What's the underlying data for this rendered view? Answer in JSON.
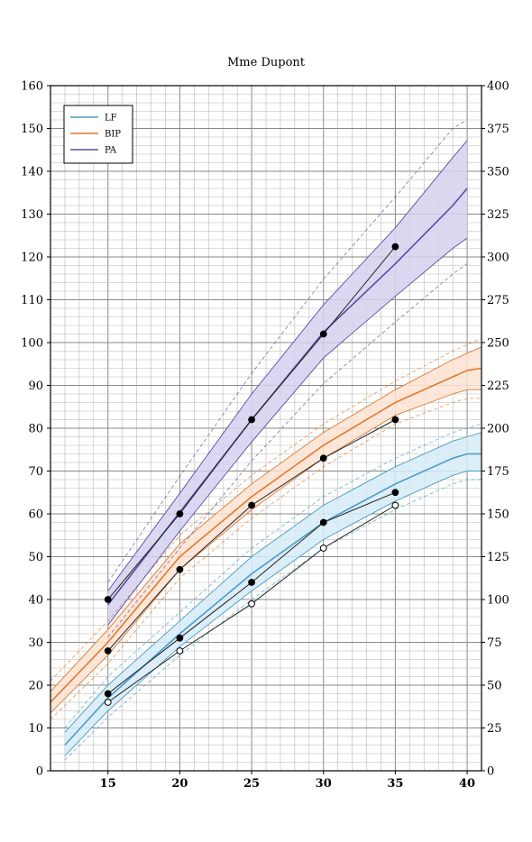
{
  "chart_data": {
    "type": "line",
    "title": "Mme Dupont",
    "x_range": [
      11,
      41
    ],
    "y_left_range": [
      0,
      160
    ],
    "y_right_range": [
      0,
      400
    ],
    "x_ticks": [
      15,
      20,
      25,
      30,
      35,
      40
    ],
    "y_left_ticks": [
      0,
      10,
      20,
      30,
      40,
      50,
      60,
      70,
      80,
      90,
      100,
      110,
      120,
      130,
      140,
      150,
      160
    ],
    "y_right_ticks": [
      0,
      25,
      50,
      75,
      100,
      125,
      150,
      175,
      200,
      225,
      250,
      275,
      300,
      325,
      350,
      375,
      400
    ],
    "grid": true,
    "legend_position": "top-left",
    "legend": [
      {
        "label": "LF",
        "color": "#4a9cc6"
      },
      {
        "label": "BIP",
        "color": "#e07a30"
      },
      {
        "label": "PA",
        "color": "#5a4e9e"
      }
    ],
    "reference_curves": [
      {
        "name": "LF",
        "axis": "left",
        "color": "#4a9cc6",
        "fill": "#d6ebf7",
        "x": [
          12,
          15,
          20,
          25,
          30,
          35,
          39,
          40,
          41
        ],
        "mean": [
          6,
          17,
          32,
          46,
          58,
          67,
          73,
          74,
          74
        ],
        "upper": [
          9,
          20,
          35,
          50,
          62,
          71,
          77,
          78,
          79
        ],
        "lower": [
          3.5,
          14,
          29,
          42,
          54,
          63,
          69,
          70,
          70
        ],
        "upper_extreme": [
          10,
          22,
          37,
          52,
          64,
          73,
          79,
          80,
          81
        ],
        "lower_extreme": [
          2.5,
          12.5,
          27,
          40,
          52,
          61,
          67,
          68,
          68
        ]
      },
      {
        "name": "BIP",
        "axis": "left",
        "color": "#e07a30",
        "fill": "#fbe3d2",
        "x": [
          11,
          15,
          20,
          25,
          30,
          35,
          39,
          40,
          41
        ],
        "mean": [
          16,
          30,
          50,
          64,
          76,
          86,
          92,
          93.5,
          94
        ],
        "upper": [
          18.5,
          33,
          53,
          67,
          79,
          89,
          96,
          97.5,
          99
        ],
        "lower": [
          13.5,
          27,
          47,
          61,
          73,
          83,
          88,
          89,
          89
        ],
        "upper_extreme": [
          21,
          35,
          55,
          69,
          81,
          91,
          98,
          99.5,
          101
        ],
        "lower_extreme": [
          12,
          25,
          45,
          59,
          71,
          81,
          86,
          87,
          87
        ]
      },
      {
        "name": "PA",
        "axis": "right",
        "color": "#5a4e9e",
        "fill": "#d5d2ee",
        "x": [
          15,
          20,
          25,
          30,
          35,
          39,
          40
        ],
        "mean": [
          97,
          151,
          205,
          256,
          296,
          330,
          340
        ],
        "upper": [
          105,
          162,
          220,
          272,
          317,
          358,
          368
        ],
        "lower": [
          85,
          140,
          192,
          241,
          277,
          305,
          311
        ],
        "upper_extreme": [
          110,
          172,
          232,
          287,
          335,
          375,
          380
        ],
        "lower_extreme": [
          78,
          130,
          181,
          226,
          262,
          290,
          296
        ]
      }
    ],
    "measurements": [
      {
        "name": "PA",
        "axis": "right",
        "marker": "filled",
        "x": [
          15,
          20,
          25,
          30,
          35
        ],
        "y": [
          100,
          150,
          205,
          255,
          306
        ]
      },
      {
        "name": "BIP",
        "axis": "left",
        "marker": "filled",
        "x": [
          15,
          20,
          25,
          30,
          35
        ],
        "y": [
          28,
          47,
          62,
          73,
          82
        ]
      },
      {
        "name": "LF",
        "axis": "left",
        "marker": "filled",
        "x": [
          15,
          20,
          25,
          30,
          35
        ],
        "y": [
          18,
          31,
          44,
          58,
          65
        ]
      },
      {
        "name": "",
        "axis": "left",
        "marker": "open",
        "x": [
          15,
          20,
          25,
          30,
          35
        ],
        "y": [
          16,
          28,
          39,
          52,
          62
        ]
      }
    ]
  }
}
